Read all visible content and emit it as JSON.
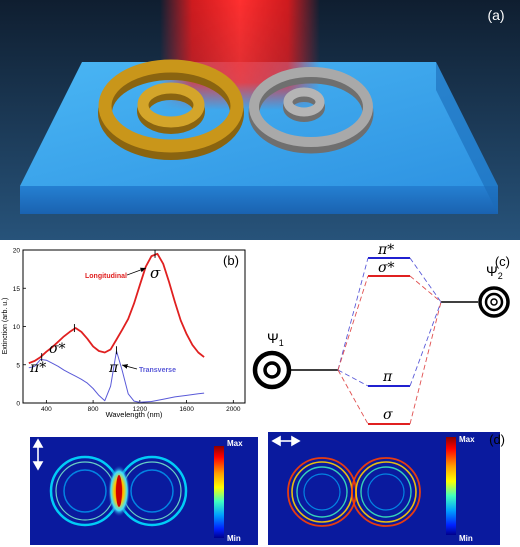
{
  "panel_labels": {
    "a": "(a)",
    "b": "(b)",
    "c": "(c)",
    "d": "(d)"
  },
  "colors": {
    "bg_top": "#12243a",
    "slab_top": "#39a6ee",
    "slab_front": "#1d6fc0",
    "gold_ring": "#c9961a",
    "silver_ring": "#a9a9a9",
    "beam": "#ff1a1a",
    "longitudinal": "#e02020",
    "transverse": "#5a5ad8",
    "field_bg": "#0a1a9e"
  },
  "chart_data": {
    "type": "line",
    "xlabel": "Wavelength (nm)",
    "ylabel": "Extinction (arb. u.)",
    "xlim": [
      200,
      2100
    ],
    "ylim": [
      0,
      20
    ],
    "x_ticks": [
      400,
      800,
      1200,
      1600,
      2000
    ],
    "y_ticks": [
      0,
      5,
      10,
      15,
      20
    ],
    "series": [
      {
        "name": "Longitudinal",
        "x": [
          250,
          300,
          350,
          400,
          450,
          500,
          550,
          600,
          650,
          700,
          750,
          800,
          850,
          900,
          950,
          1000,
          1050,
          1100,
          1150,
          1200,
          1250,
          1300,
          1350,
          1400,
          1450,
          1500,
          1550,
          1600,
          1650,
          1700,
          1750
        ],
        "values": [
          5.2,
          5.5,
          6.0,
          6.7,
          7.3,
          8.0,
          8.7,
          9.3,
          9.8,
          9.3,
          8.4,
          7.4,
          6.8,
          6.6,
          7.0,
          8.3,
          9.6,
          11.0,
          13.0,
          15.4,
          17.8,
          19.2,
          19.5,
          18.2,
          15.8,
          13.2,
          10.8,
          9.0,
          7.6,
          6.6,
          6.0
        ]
      },
      {
        "name": "Transverse",
        "x": [
          250,
          300,
          350,
          400,
          450,
          500,
          550,
          600,
          650,
          700,
          750,
          800,
          850,
          900,
          950,
          1000,
          1050,
          1100,
          1150,
          1200,
          1300,
          1400,
          1500,
          1600,
          1700,
          1750
        ],
        "values": [
          4.6,
          4.8,
          5.7,
          5.6,
          5.2,
          4.8,
          4.3,
          3.9,
          3.5,
          3.1,
          2.6,
          1.9,
          1.0,
          0.3,
          2.2,
          6.8,
          4.2,
          1.2,
          0.25,
          0.1,
          0.2,
          0.5,
          0.8,
          1.0,
          1.2,
          1.3
        ]
      }
    ],
    "annotations": [
      {
        "text": "Longitudinal",
        "target": [
          1330,
          18.7
        ]
      },
      {
        "text": "Transverse",
        "target": [
          1030,
          4.6
        ]
      },
      {
        "text": "σ",
        "at": [
          1330,
          19.5
        ]
      },
      {
        "text": "σ*",
        "at": [
          640,
          9.8
        ]
      },
      {
        "text": "π*",
        "at": [
          360,
          6.0
        ]
      },
      {
        "text": "π",
        "at": [
          980,
          6.9
        ]
      }
    ]
  },
  "diagram": {
    "psi1": "Ψ",
    "psi1_sub": "1",
    "psi2": "Ψ",
    "psi2_sub": "2",
    "levels": {
      "pi_star": "π*",
      "sigma_star": "σ*",
      "pi": "π",
      "sigma": "σ"
    }
  },
  "field_maps": {
    "max_label": "Max",
    "min_label": "Min"
  }
}
